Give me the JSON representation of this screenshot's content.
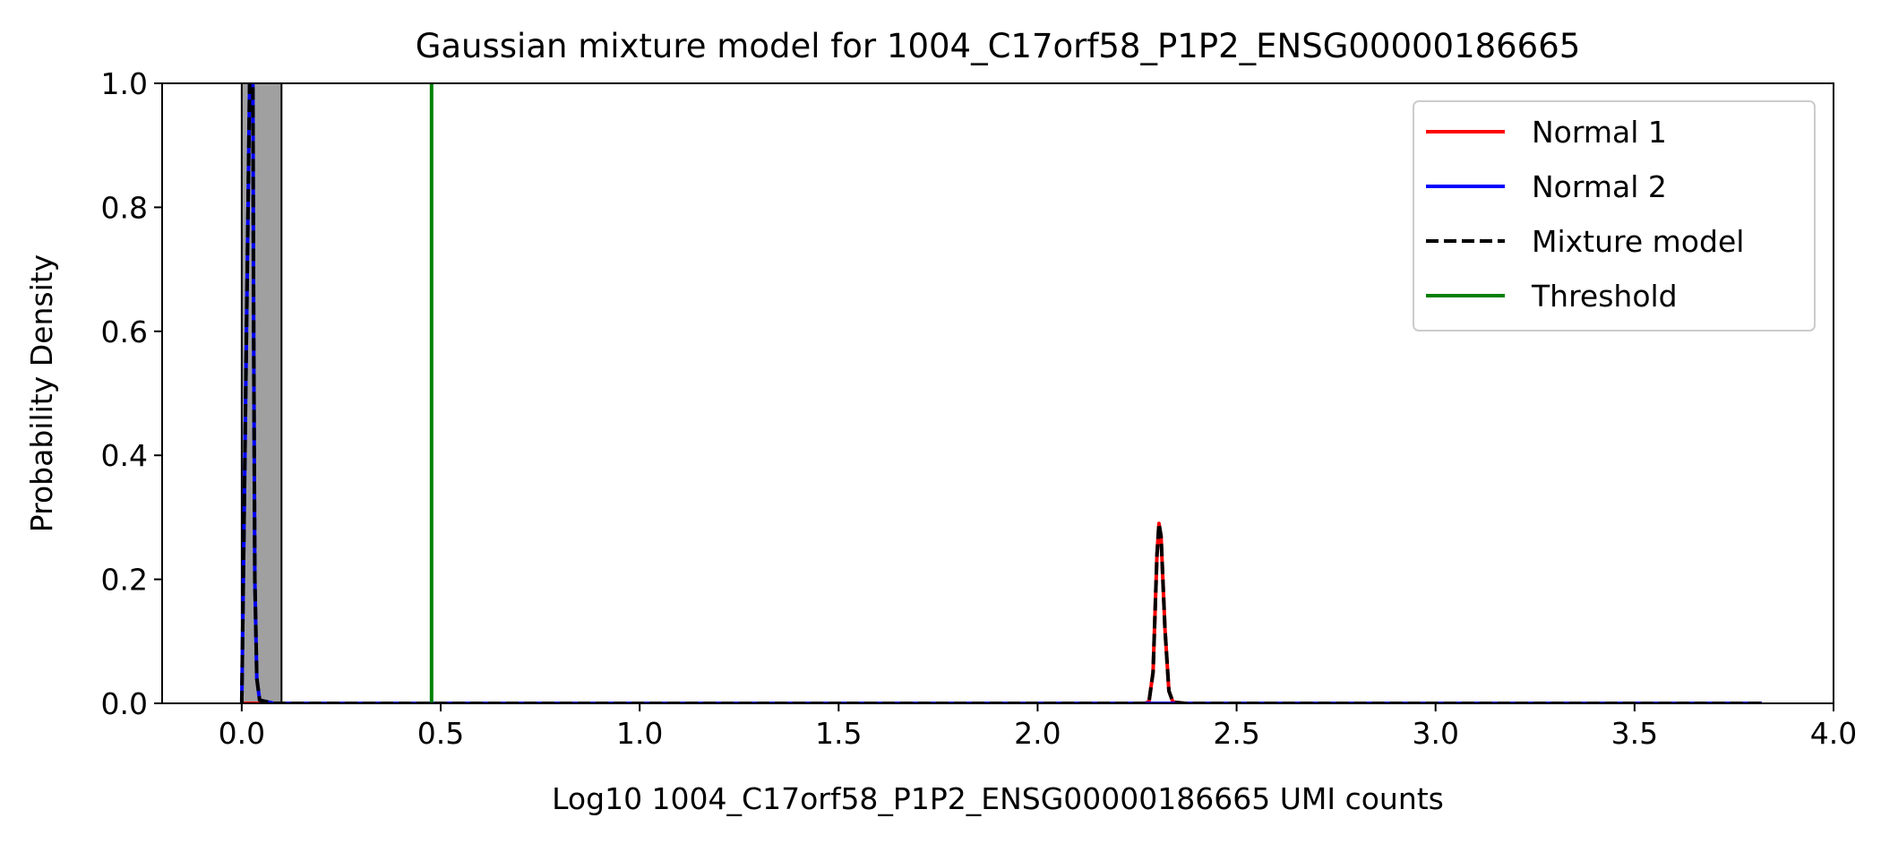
{
  "chart_data": {
    "type": "line",
    "title": "Gaussian mixture model for 1004_C17orf58_P1P2_ENSG00000186665",
    "xlabel": "Log10 1004_C17orf58_P1P2_ENSG00000186665 UMI counts",
    "ylabel": "Probability Density",
    "xlim": [
      -0.2,
      4.0
    ],
    "ylim": [
      0.0,
      1.0
    ],
    "xticks": [
      0.0,
      0.5,
      1.0,
      1.5,
      2.0,
      2.5,
      3.0,
      3.5,
      4.0
    ],
    "xtick_labels": [
      "0.0",
      "0.5",
      "1.0",
      "1.5",
      "2.0",
      "2.5",
      "3.0",
      "3.5",
      "4.0"
    ],
    "yticks": [
      0.0,
      0.2,
      0.4,
      0.6,
      0.8,
      1.0
    ],
    "ytick_labels": [
      "0.0",
      "0.2",
      "0.4",
      "0.6",
      "0.8",
      "1.0"
    ],
    "grid": false,
    "legend_position": "top-right",
    "histogram": {
      "color": "#a0a0a0",
      "edge_color": "#000000",
      "bins": [
        {
          "x0": 0.0,
          "x1": 0.1,
          "height": 1.0
        }
      ]
    },
    "series": [
      {
        "name": "Normal 1",
        "color": "#ff0000",
        "style": "solid",
        "x": [
          0.0,
          2.24,
          2.27,
          2.28,
          2.29,
          2.3,
          2.305,
          2.31,
          2.32,
          2.33,
          2.34,
          2.37,
          3.82
        ],
        "y": [
          0.0,
          0.0,
          0.0,
          0.003,
          0.05,
          0.24,
          0.29,
          0.27,
          0.12,
          0.02,
          0.002,
          0.0,
          0.0
        ]
      },
      {
        "name": "Normal 2",
        "color": "#0000ff",
        "style": "solid",
        "x": [
          0.0,
          0.02,
          0.028,
          0.03,
          0.033,
          0.038,
          0.045,
          0.08,
          3.82
        ],
        "y": [
          0.0,
          1.0,
          1.0,
          0.6,
          0.2,
          0.04,
          0.005,
          0.0,
          0.0
        ]
      },
      {
        "name": "Mixture model",
        "color": "#000000",
        "style": "dashed",
        "x": [
          0.0,
          0.02,
          0.028,
          0.03,
          0.033,
          0.038,
          0.045,
          0.08,
          2.24,
          2.27,
          2.28,
          2.29,
          2.3,
          2.305,
          2.31,
          2.32,
          2.33,
          2.34,
          2.37,
          3.82
        ],
        "y": [
          0.0,
          1.0,
          1.0,
          0.6,
          0.2,
          0.04,
          0.005,
          0.0,
          0.0,
          0.0,
          0.003,
          0.05,
          0.24,
          0.29,
          0.27,
          0.12,
          0.02,
          0.002,
          0.0,
          0.0
        ]
      },
      {
        "name": "Threshold",
        "color": "#008000",
        "style": "vertical",
        "x": [
          0.477,
          0.477
        ],
        "y": [
          0.0,
          1.0
        ]
      }
    ]
  }
}
